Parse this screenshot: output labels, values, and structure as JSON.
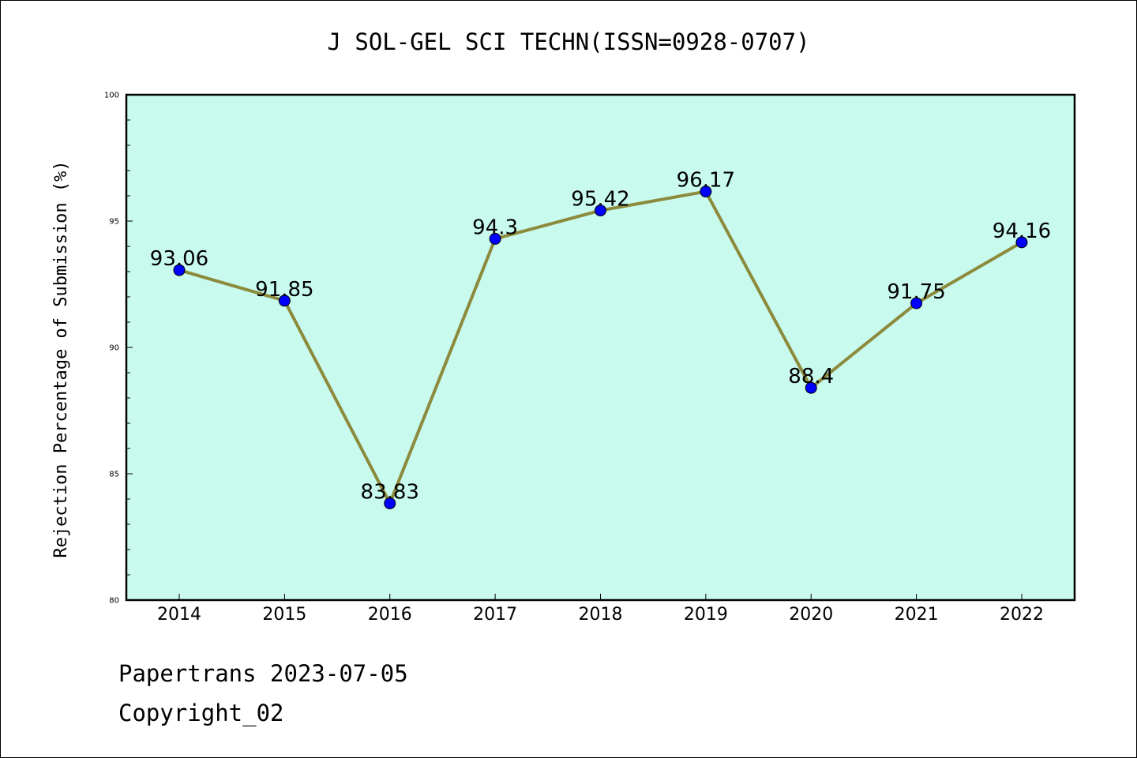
{
  "title": "J SOL-GEL SCI TECHN(ISSN=0928-0707)",
  "footer": {
    "line1": "Papertrans 2023-07-05",
    "line2": "Copyright_02"
  },
  "colors": {
    "plot_background": "#c8faee",
    "line": "#8c8a3c",
    "marker": "#0000ff"
  },
  "chart_data": {
    "type": "line",
    "title": "J SOL-GEL SCI TECHN(ISSN=0928-0707)",
    "xlabel": "",
    "ylabel": "Rejection Percentage of Submission (%)",
    "categories": [
      "2014",
      "2015",
      "2016",
      "2017",
      "2018",
      "2019",
      "2020",
      "2021",
      "2022"
    ],
    "values": [
      93.06,
      91.85,
      83.83,
      94.3,
      95.42,
      96.17,
      88.4,
      91.75,
      94.16
    ],
    "data_labels": [
      "93.06",
      "91.85",
      "83.83",
      "94.3",
      "95.42",
      "96.17",
      "88.4",
      "91.75",
      "94.16"
    ],
    "ylim": [
      80,
      100
    ],
    "yticks": [
      80,
      85,
      90,
      95,
      100
    ],
    "grid": false,
    "legend": "none"
  }
}
